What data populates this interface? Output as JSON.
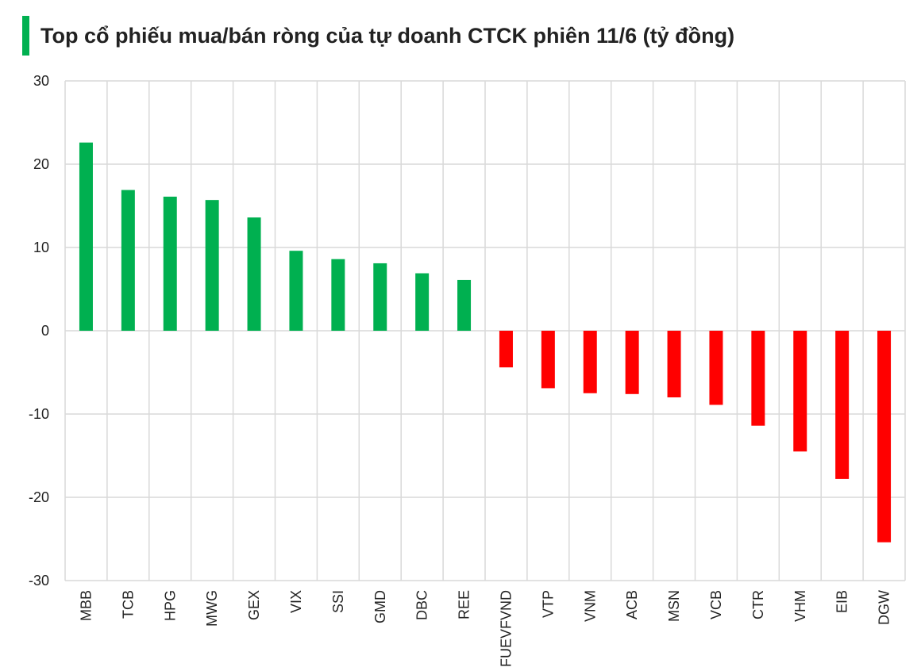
{
  "title": "Top cổ phiếu mua/bán ròng của tự doanh CTCK phiên 11/6 (tỷ đồng)",
  "colors": {
    "positive": "#00b050",
    "negative": "#ff0000",
    "title_bar": "#00b050",
    "grid": "#d9d9d9",
    "axis_text": "#222222"
  },
  "chart_data": {
    "type": "bar",
    "title": "Top cổ phiếu mua/bán ròng của tự doanh CTCK phiên 11/6 (tỷ đồng)",
    "xlabel": "",
    "ylabel": "",
    "ylim": [
      -30,
      30
    ],
    "yticks": [
      30,
      20,
      10,
      0,
      -10,
      -20,
      -30
    ],
    "grid": true,
    "legend": "none",
    "categories": [
      "MBB",
      "TCB",
      "HPG",
      "MWG",
      "GEX",
      "VIX",
      "SSI",
      "GMD",
      "DBC",
      "REE",
      "FUEVFVND",
      "VTP",
      "VNM",
      "ACB",
      "MSN",
      "VCB",
      "CTR",
      "VHM",
      "EIB",
      "DGW"
    ],
    "values": [
      22.6,
      16.9,
      16.1,
      15.7,
      13.6,
      9.6,
      8.6,
      8.1,
      6.9,
      6.1,
      -4.4,
      -6.9,
      -7.5,
      -7.6,
      -8.0,
      -8.9,
      -11.4,
      -14.5,
      -17.8,
      -25.4
    ]
  }
}
